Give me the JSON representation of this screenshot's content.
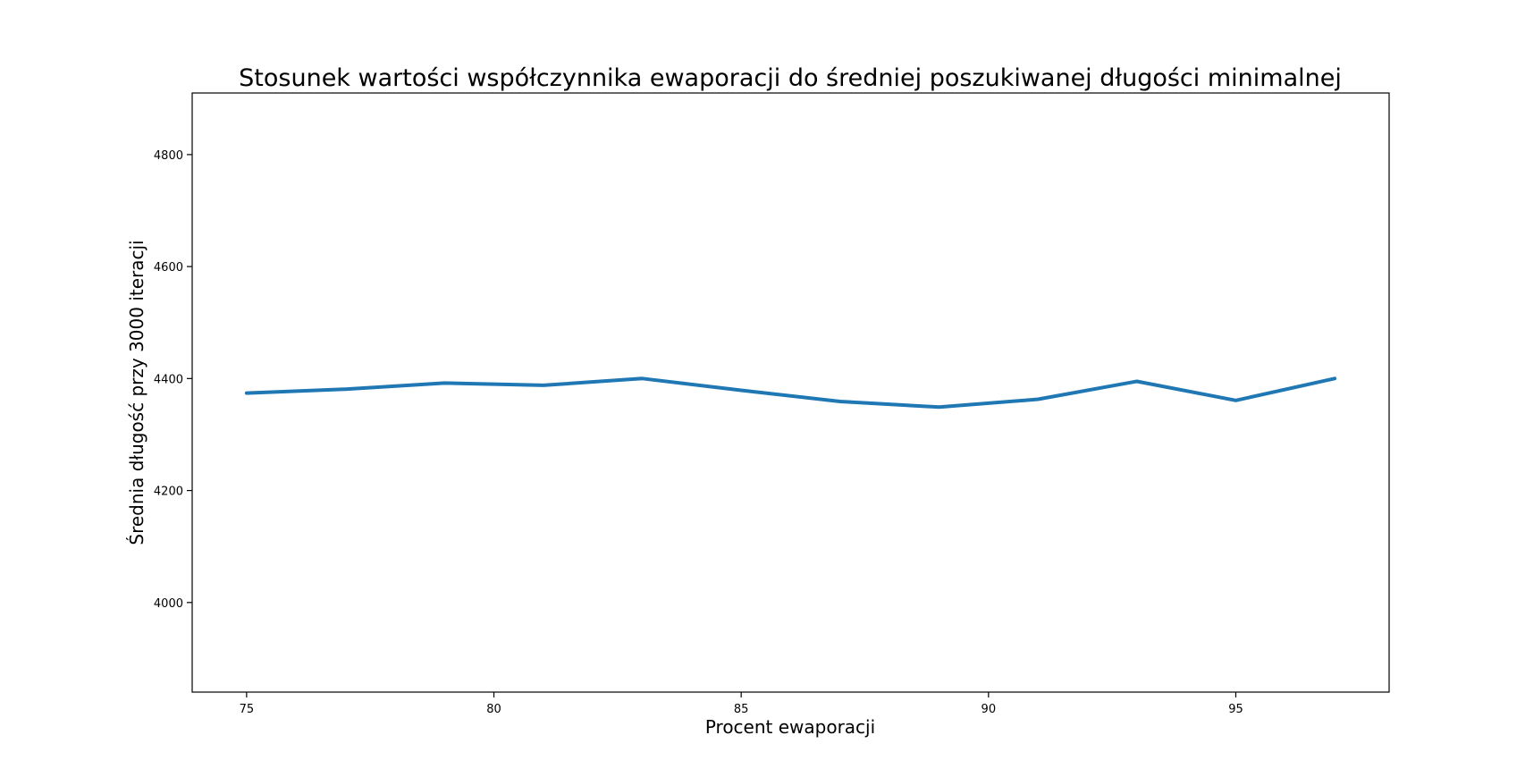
{
  "chart_data": {
    "type": "line",
    "title": "Stosunek wartości współczynnika ewaporacji do średniej poszukiwanej długości minimalnej",
    "xlabel": "Procent ewaporacji",
    "ylabel": "Średnia długość przy 3000 iteracji",
    "xlim": [
      73.9,
      98.1
    ],
    "ylim": [
      3840,
      4910
    ],
    "xticks": [
      75,
      80,
      85,
      90,
      95
    ],
    "yticks": [
      4000,
      4200,
      4400,
      4600,
      4800
    ],
    "grid": false,
    "series": [
      {
        "color": "#1f77b4",
        "x": [
          75,
          77,
          79,
          81,
          83,
          85,
          87,
          89,
          91,
          93,
          95,
          97
        ],
        "y": [
          4374,
          4381,
          4392,
          4388,
          4400,
          4379,
          4359,
          4349,
          4363,
          4395,
          4361,
          4400
        ]
      }
    ]
  }
}
